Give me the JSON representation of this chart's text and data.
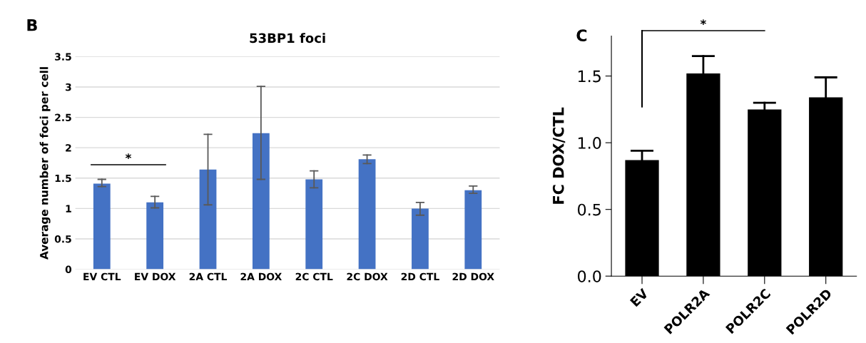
{
  "chart_data": [
    {
      "type": "bar",
      "title": "53BP1 foci",
      "ylabel": "Average number of foci per cell",
      "categories": [
        "EV CTL",
        "EV DOX",
        "2A CTL",
        "2A DOX",
        "2C CTL",
        "2C DOX",
        "2D CTL",
        "2D DOX"
      ],
      "values": [
        1.41,
        1.1,
        1.64,
        2.24,
        1.48,
        1.81,
        1.0,
        1.3
      ],
      "errors": [
        [
          1.36,
          1.48
        ],
        [
          1.01,
          1.2
        ],
        [
          1.06,
          2.22
        ],
        [
          1.48,
          3.01
        ],
        [
          1.34,
          1.62
        ],
        [
          1.74,
          1.88
        ],
        [
          0.89,
          1.1
        ],
        [
          1.25,
          1.37
        ]
      ],
      "color": "#4472c4",
      "ylim": [
        0,
        3.5
      ],
      "yticks": [
        0,
        0.5,
        1,
        1.5,
        2,
        2.5,
        3,
        3.5
      ],
      "grid": "y",
      "annotations": [
        "B",
        "*"
      ]
    },
    {
      "type": "bar",
      "ylabel": "FC DOX/CTL",
      "categories": [
        "EV",
        "POLR2A",
        "POLR2C",
        "POLR2D"
      ],
      "values": [
        0.87,
        1.52,
        1.25,
        1.34
      ],
      "errors": [
        [
          0.87,
          0.94
        ],
        [
          1.52,
          1.65
        ],
        [
          1.25,
          1.3
        ],
        [
          1.34,
          1.49
        ]
      ],
      "color": "#000000",
      "ylim": [
        0,
        1.8
      ],
      "yticks": [
        {
          "value": 0,
          "label": "0.0"
        },
        {
          "value": 0.5,
          "label": "0.5"
        },
        {
          "value": 1,
          "label": "1.0"
        },
        {
          "value": 1.5,
          "label": "1.5"
        }
      ],
      "annotations": [
        "C",
        "*"
      ]
    }
  ]
}
